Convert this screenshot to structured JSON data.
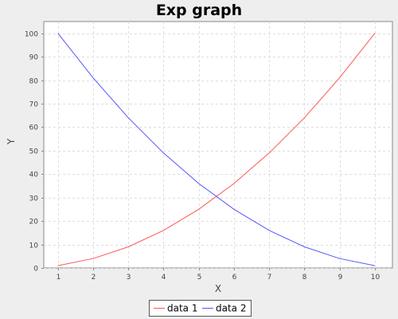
{
  "chart_data": {
    "type": "line",
    "title": "Exp graph",
    "xlabel": "X",
    "ylabel": "Y",
    "x": [
      1,
      2,
      3,
      4,
      5,
      6,
      7,
      8,
      9,
      10
    ],
    "xlim": [
      0.6,
      10.5
    ],
    "ylim": [
      0,
      105
    ],
    "xticks": [
      1,
      2,
      3,
      4,
      5,
      6,
      7,
      8,
      9,
      10
    ],
    "yticks": [
      0,
      10,
      20,
      30,
      40,
      50,
      60,
      70,
      80,
      90,
      100
    ],
    "grid": true,
    "legend_position": "bottom",
    "series": [
      {
        "name": "data 1",
        "color": "#FF5555",
        "values": [
          1,
          4,
          9,
          16,
          25,
          36,
          49,
          64,
          81,
          100
        ]
      },
      {
        "name": "data 2",
        "color": "#5555FF",
        "values": [
          100,
          81,
          64,
          49,
          36,
          25,
          16,
          9,
          4,
          1
        ]
      }
    ],
    "colors": {
      "background": "#EEEEEE",
      "plot_background": "#FFFFFF",
      "grid": "#DDDDDD",
      "axis": "#888888"
    }
  }
}
